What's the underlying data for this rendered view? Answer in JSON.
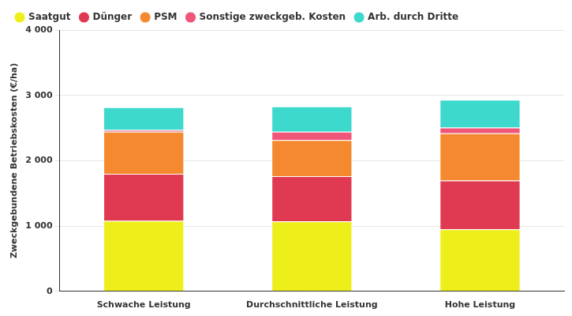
{
  "chart_data": {
    "type": "bar",
    "stacked": true,
    "y_label": "Zweckgebundene Betriebskosten (€/ha)",
    "categories": [
      "Schwache Leistung",
      "Durchschnittliche Leistung",
      "Hohe Leistung"
    ],
    "series": [
      {
        "name": "Saatgut",
        "color": "#eeef1a",
        "values": [
          1080,
          1070,
          950
        ]
      },
      {
        "name": "Dünger",
        "color": "#e03a52",
        "values": [
          720,
          692,
          748
        ]
      },
      {
        "name": "PSM",
        "color": "#f5892f",
        "values": [
          644,
          553,
          720
        ]
      },
      {
        "name": "Sonstige zweckgeb. Kosten",
        "color": "#f0567a",
        "values": [
          26,
          129,
          90
        ]
      },
      {
        "name": "Arb. durch Dritte",
        "color": "#3dd9cc",
        "values": [
          347,
          386,
          424
        ]
      }
    ],
    "ylim": [
      0,
      4000
    ],
    "yticks": [
      0,
      {
        "value": 1000,
        "label": "1 000"
      },
      {
        "value": 2000,
        "label": "2 000"
      },
      {
        "value": 3000,
        "label": "3 000"
      },
      {
        "value": 4000,
        "label": "4 000"
      }
    ],
    "grid": true,
    "legend": "top"
  }
}
